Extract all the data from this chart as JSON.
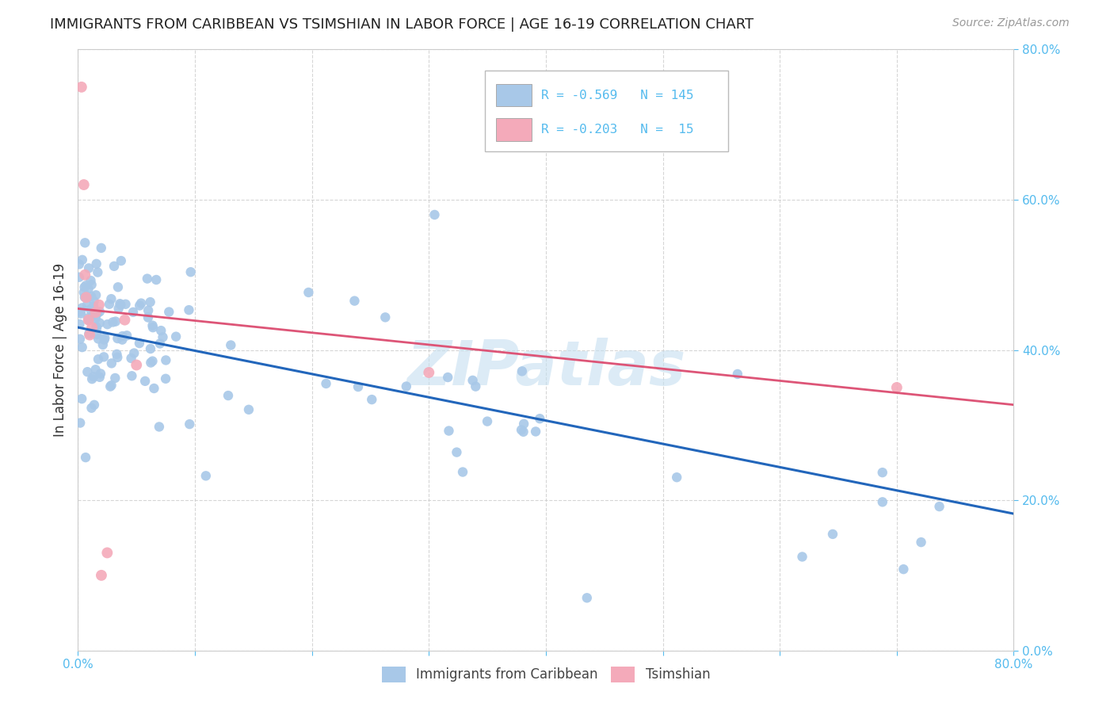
{
  "title": "IMMIGRANTS FROM CARIBBEAN VS TSIMSHIAN IN LABOR FORCE | AGE 16-19 CORRELATION CHART",
  "source": "Source: ZipAtlas.com",
  "xlim": [
    0.0,
    0.8
  ],
  "ylim": [
    0.0,
    0.8
  ],
  "legend_label1": "Immigrants from Caribbean",
  "legend_label2": "Tsimshian",
  "scatter_color1": "#a8c8e8",
  "scatter_color2": "#f4aaba",
  "line_color1": "#2266bb",
  "line_color2": "#dd5577",
  "watermark": "ZIPatlas",
  "background_color": "#ffffff",
  "grid_color": "#cccccc",
  "axis_color": "#55bbee",
  "title_color": "#222222",
  "ylabel_color": "#333333",
  "source_color": "#999999",
  "blue_line_intercept": 0.43,
  "blue_line_slope": -0.31,
  "pink_line_intercept": 0.455,
  "pink_line_slope": -0.16
}
